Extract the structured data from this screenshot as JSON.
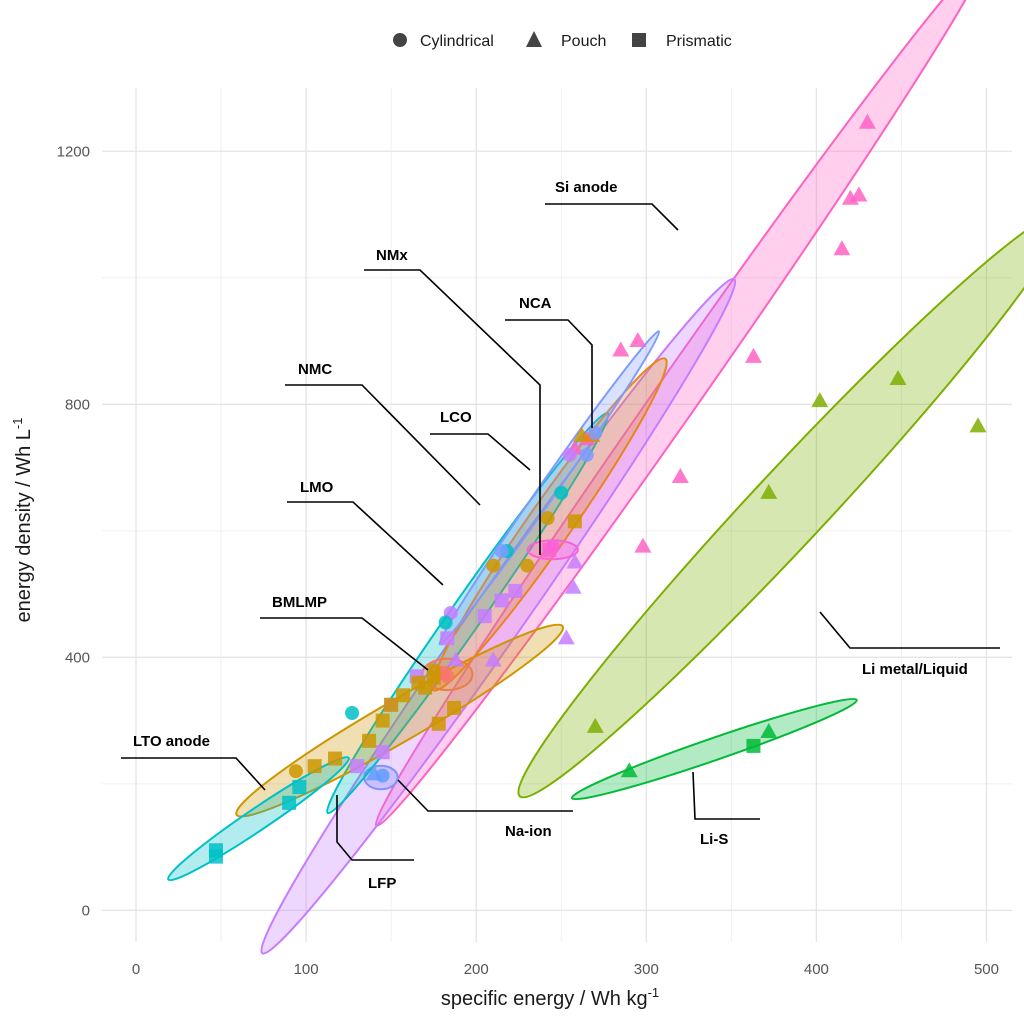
{
  "chart_data": {
    "type": "scatter",
    "xlabel_main": "specific energy / Wh kg",
    "xlabel_sup": "-1",
    "ylabel_main": "energy density / Wh L",
    "ylabel_sup": "-1",
    "xlim": [
      -20,
      515
    ],
    "ylim": [
      -50,
      1300
    ],
    "x_ticks": [
      0,
      100,
      200,
      300,
      400,
      500
    ],
    "y_ticks": [
      0,
      400,
      800,
      1200
    ],
    "grid": true,
    "legend_position": "top",
    "legend": [
      {
        "label": "Cylindrical",
        "shape": "circle"
      },
      {
        "label": "Pouch",
        "shape": "triangle"
      },
      {
        "label": "Prismatic",
        "shape": "square"
      }
    ],
    "groups": [
      {
        "name": "Si anode",
        "color": "#ff61c3",
        "ellipse": {
          "cx": 320,
          "cy": 820,
          "rx": 380,
          "ry": 55,
          "angle": 55
        },
        "points": [
          [
            430,
            1245,
            "triangle"
          ],
          [
            425,
            1130,
            "triangle"
          ],
          [
            420,
            1125,
            "triangle"
          ],
          [
            415,
            1045,
            "triangle"
          ],
          [
            285,
            885,
            "triangle"
          ],
          [
            295,
            900,
            "triangle"
          ],
          [
            363,
            875,
            "triangle"
          ],
          [
            320,
            685,
            "triangle"
          ],
          [
            298,
            575,
            "triangle"
          ],
          [
            265,
            745,
            "triangle"
          ],
          [
            258,
            730,
            "triangle"
          ]
        ],
        "label": "Si anode"
      },
      {
        "name": "Li metal/Liquid",
        "color": "#7cae00",
        "ellipse": {
          "cx": 385,
          "cy": 640,
          "rx": 285,
          "ry": 95,
          "angle": 47
        },
        "points": [
          [
            448,
            840,
            "triangle"
          ],
          [
            402,
            805,
            "triangle"
          ],
          [
            495,
            765,
            "triangle"
          ],
          [
            372,
            660,
            "triangle"
          ],
          [
            270,
            290,
            "triangle"
          ]
        ],
        "label": "Li metal/Liquid"
      },
      {
        "name": "Li-S",
        "color": "#00ba38",
        "ellipse": {
          "cx": 340,
          "cy": 255,
          "rx": 108,
          "ry": 28,
          "angle": 19
        },
        "points": [
          [
            372,
            282,
            "triangle"
          ],
          [
            363,
            260,
            "square"
          ],
          [
            290,
            220,
            "triangle"
          ]
        ],
        "label": "Li-S"
      },
      {
        "name": "Na-ion",
        "color": "#619cff",
        "ellipse": {
          "cx": 144,
          "cy": 210,
          "rx": 12,
          "ry": 30,
          "angle": 0
        },
        "points": [
          [
            145,
            213,
            "circle"
          ],
          [
            140,
            215,
            "triangle"
          ]
        ],
        "label": "Na-ion"
      },
      {
        "name": "LFP",
        "color": "#c77cff",
        "ellipse": {
          "cx": 213,
          "cy": 465,
          "rx": 295,
          "ry": 65,
          "angle": 55
        },
        "points": [
          [
            258,
            550,
            "triangle"
          ],
          [
            257,
            510,
            "triangle"
          ],
          [
            253,
            430,
            "triangle"
          ],
          [
            210,
            395,
            "triangle"
          ],
          [
            188,
            395,
            "triangle"
          ],
          [
            185,
            470,
            "circle"
          ],
          [
            183,
            430,
            "square"
          ],
          [
            205,
            465,
            "square"
          ],
          [
            215,
            490,
            "square"
          ],
          [
            223,
            505,
            "square"
          ],
          [
            165,
            370,
            "square"
          ],
          [
            150,
            325,
            "square"
          ],
          [
            145,
            250,
            "square"
          ],
          [
            130,
            228,
            "square"
          ],
          [
            255,
            720,
            "circle"
          ]
        ],
        "label": "LFP"
      },
      {
        "name": "LMO",
        "color": "#00bfc4",
        "ellipse": {
          "cx": 195,
          "cy": 470,
          "rx": 175,
          "ry": 40,
          "angle": 55
        },
        "points": [
          [
            218,
            568,
            "circle"
          ],
          [
            182,
            455,
            "circle"
          ],
          [
            127,
            312,
            "circle"
          ],
          [
            250,
            660,
            "circle"
          ]
        ],
        "label": "LMO"
      },
      {
        "name": "BMLMP",
        "color": "#f8766d",
        "ellipse": {
          "cx": 183,
          "cy": 373,
          "rx": 18,
          "ry": 40,
          "angle": 0
        },
        "points": [
          [
            180,
            375,
            "square"
          ],
          [
            183,
            370,
            "circle"
          ]
        ],
        "label": "BMLMP"
      },
      {
        "name": "NMC",
        "color": "#cd9600",
        "ellipse": {
          "cx": 155,
          "cy": 300,
          "rx": 135,
          "ry": 53,
          "angle": 30
        },
        "points": [
          [
            94,
            220,
            "circle"
          ],
          [
            105,
            228,
            "square"
          ],
          [
            117,
            240,
            "square"
          ],
          [
            137,
            268,
            "square"
          ],
          [
            145,
            300,
            "square"
          ],
          [
            150,
            325,
            "square"
          ],
          [
            157,
            340,
            "square"
          ],
          [
            170,
            352,
            "square"
          ],
          [
            175,
            368,
            "square"
          ],
          [
            178,
            295,
            "square"
          ],
          [
            187,
            320,
            "square"
          ],
          [
            166,
            360,
            "square"
          ],
          [
            175,
            380,
            "circle"
          ],
          [
            210,
            545,
            "circle"
          ],
          [
            230,
            545,
            "circle"
          ],
          [
            242,
            620,
            "circle"
          ],
          [
            258,
            615,
            "square"
          ],
          [
            262,
            750,
            "triangle"
          ]
        ],
        "label": "NMC"
      },
      {
        "name": "LCO",
        "color": "#e7861b",
        "ellipse": {
          "cx": 243,
          "cy": 610,
          "rx": 145,
          "ry": 55,
          "angle": 55
        },
        "points": [
          [
            268,
            750,
            "triangle"
          ]
        ],
        "label": "LCO"
      },
      {
        "name": "NCA",
        "color": "#7f9bff",
        "ellipse": {
          "cx": 243,
          "cy": 668,
          "rx": 137,
          "ry": 22,
          "angle": 55
        },
        "points": [
          [
            265,
            720,
            "circle"
          ],
          [
            215,
            568,
            "circle"
          ],
          [
            270,
            755,
            "circle"
          ]
        ],
        "label": "NCA"
      },
      {
        "name": "NMx",
        "color": "#fb61d7",
        "ellipse": {
          "cx": 245,
          "cy": 570,
          "rx": 18,
          "ry": 24,
          "angle": 0
        },
        "points": [
          [
            243,
            570,
            "square"
          ],
          [
            245,
            575,
            "circle"
          ]
        ],
        "label": "NMx"
      },
      {
        "name": "LTO anode",
        "color": "#00c1c8",
        "ellipse": {
          "cx": 72,
          "cy": 145,
          "rx": 78,
          "ry": 28,
          "angle": 34
        },
        "points": [
          [
            47,
            85,
            "square"
          ],
          [
            47,
            95,
            "square"
          ],
          [
            90,
            170,
            "square"
          ],
          [
            96,
            195,
            "square"
          ]
        ],
        "label": "LTO anode"
      }
    ]
  }
}
